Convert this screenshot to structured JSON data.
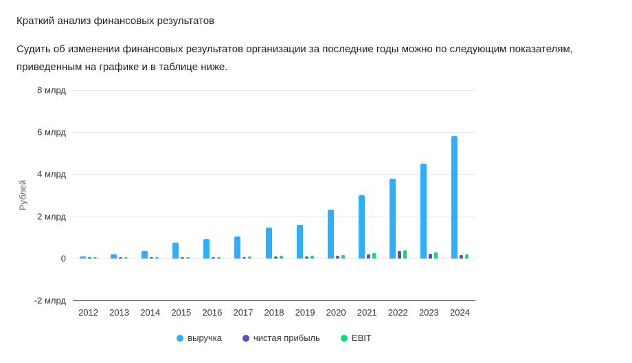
{
  "page": {
    "title": "Краткий анализ финансовых результатов",
    "intro": "Судить об изменении финансовых результатов организации за последние годы можно по следующим показателям, приведенным на графике и в таблице ниже."
  },
  "chart_data": {
    "type": "bar",
    "title": "",
    "xlabel": "",
    "ylabel": "Рублей",
    "unit": "млрд",
    "ylim": [
      -2,
      8
    ],
    "grid": true,
    "legend_position": "bottom",
    "yticks": [
      {
        "value": 8,
        "label": "8 млрд"
      },
      {
        "value": 6,
        "label": "6 млрд"
      },
      {
        "value": 4,
        "label": "4 млрд"
      },
      {
        "value": 2,
        "label": "2 млрд"
      },
      {
        "value": 0,
        "label": "0"
      },
      {
        "value": -2,
        "label": "-2 млрд"
      }
    ],
    "categories": [
      "2012",
      "2013",
      "2014",
      "2015",
      "2016",
      "2017",
      "2018",
      "2019",
      "2020",
      "2021",
      "2022",
      "2023",
      "2024"
    ],
    "series": [
      {
        "key": "revenue",
        "name": "выручка",
        "color": "#2caffe",
        "values": [
          0.1,
          0.2,
          0.35,
          0.75,
          0.9,
          1.05,
          1.45,
          1.6,
          2.3,
          3.0,
          3.8,
          4.5,
          5.8
        ]
      },
      {
        "key": "net-profit",
        "name": "чистая прибыль",
        "color": "#544fc5",
        "values": [
          0.02,
          0.03,
          0.04,
          0.03,
          0.04,
          0.05,
          0.1,
          0.1,
          0.12,
          0.2,
          0.35,
          0.22,
          0.15
        ]
      },
      {
        "key": "ebit",
        "name": "EBIT",
        "color": "#00e272",
        "values": [
          0.02,
          0.04,
          0.05,
          0.04,
          0.06,
          0.09,
          0.13,
          0.13,
          0.16,
          0.25,
          0.4,
          0.3,
          0.2
        ]
      }
    ]
  }
}
